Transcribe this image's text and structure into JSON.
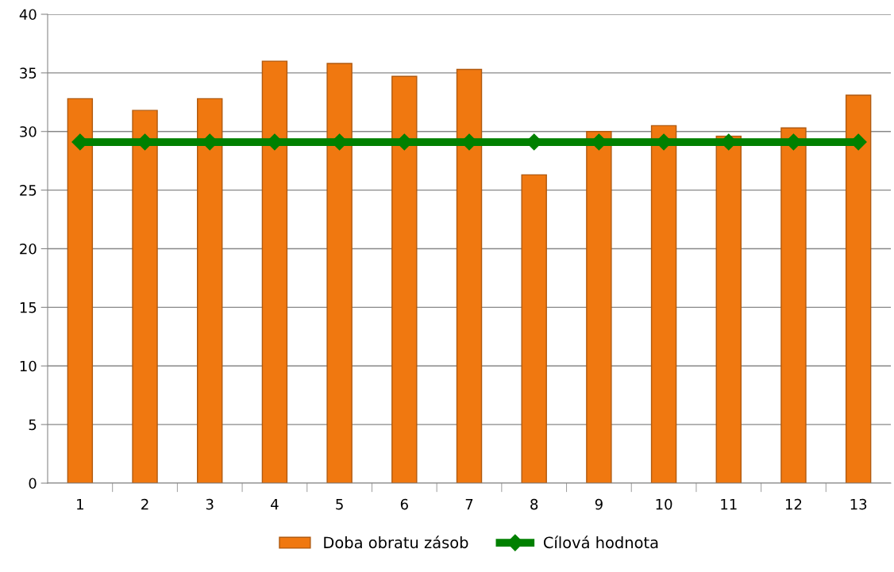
{
  "chart_data": {
    "type": "bar",
    "categories": [
      "1",
      "2",
      "3",
      "4",
      "5",
      "6",
      "7",
      "8",
      "9",
      "10",
      "11",
      "12",
      "13"
    ],
    "series": [
      {
        "name": "Doba obratu zásob",
        "color": "#f07810",
        "values": [
          32.8,
          31.8,
          32.8,
          36.0,
          35.8,
          34.7,
          35.3,
          26.3,
          30.0,
          30.5,
          29.6,
          30.3,
          33.1
        ]
      },
      {
        "name": "Cílová hodnota",
        "type": "line",
        "color": "#008000",
        "marker": "diamond",
        "values": [
          29.1,
          29.1,
          29.1,
          29.1,
          29.1,
          29.1,
          29.1,
          29.1,
          29.1,
          29.1,
          29.1,
          29.1,
          29.1
        ]
      }
    ],
    "ylim": [
      0,
      40
    ],
    "yticks": [
      0,
      5,
      10,
      15,
      20,
      25,
      30,
      35,
      40
    ],
    "grid": "y",
    "legend": "bottom"
  }
}
